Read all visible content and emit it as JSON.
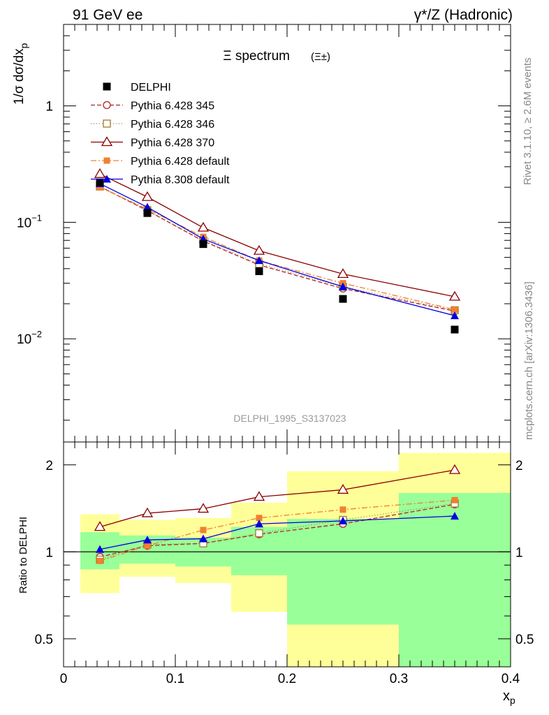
{
  "header": {
    "left": "91 GeV ee",
    "right": "γ*/Z (Hadronic)"
  },
  "side_labels": {
    "rivet": "Rivet 3.1.10, ≥ 2.6M events",
    "mcplots": "mcplots.cern.ch [arXiv:1306.3436]"
  },
  "chart_data": {
    "type": "line",
    "title": "Ξ spectrum",
    "title_suffix": "(Ξ±)",
    "analysis_id": "DELPHI_1995_S3137023",
    "xlabel": "x",
    "xlabel_sub": "p",
    "ylabel": "1/σ dσ/dx",
    "ylabel_sub": "p",
    "ratio_ylabel": "Ratio to DELPHI",
    "x_scale": "linear",
    "xlim": [
      0,
      0.4
    ],
    "x_ticks": [
      "0",
      "0.1",
      "0.2",
      "0.3",
      "0.4"
    ],
    "y_scale": "log",
    "ylim": [
      0.0013,
      5.0
    ],
    "y_ticks": [
      {
        "mantissa": "1",
        "exp": "",
        "value": 1
      },
      {
        "mantissa": "10",
        "exp": "−1",
        "value": 0.1
      },
      {
        "mantissa": "10",
        "exp": "−2",
        "value": 0.01
      }
    ],
    "ratio_scale": "log",
    "ratio_ylim": [
      0.4,
      2.4
    ],
    "ratio_ticks": [
      "0.5",
      "1",
      "2"
    ],
    "ratio_tick_values": [
      0.5,
      1,
      2
    ],
    "legend_position": "top-left",
    "x": [
      0.0325,
      0.075,
      0.125,
      0.175,
      0.25,
      0.35
    ],
    "bin_edges": [
      0.015,
      0.05,
      0.1,
      0.15,
      0.2,
      0.3,
      0.4
    ],
    "data": {
      "name": "DELPHI",
      "color": "#000000",
      "values": [
        0.22,
        0.12,
        0.065,
        0.038,
        0.022,
        0.012
      ]
    },
    "ratio_bands": {
      "inner_color": "#99ff99",
      "outer_color": "#ffff99",
      "inner": [
        [
          0.87,
          1.17
        ],
        [
          0.91,
          1.14
        ],
        [
          0.89,
          1.12
        ],
        [
          0.83,
          1.22
        ],
        [
          0.56,
          1.3
        ],
        [
          0.4,
          1.6
        ]
      ],
      "outer": [
        [
          0.72,
          1.35
        ],
        [
          0.82,
          1.29
        ],
        [
          0.78,
          1.31
        ],
        [
          0.62,
          1.48
        ],
        [
          0.4,
          1.9
        ],
        [
          0.4,
          2.2
        ]
      ]
    },
    "series": [
      {
        "name": "Pythia 6.428 345",
        "color": "#b22222",
        "dash": "6,3",
        "marker": "open-circle",
        "values": [
          0.203,
          0.126,
          0.069,
          0.043,
          0.027,
          0.0173
        ],
        "ratio": [
          0.96,
          1.05,
          1.07,
          1.15,
          1.25,
          1.46
        ]
      },
      {
        "name": "Pythia 6.428 346",
        "color": "#a0792e",
        "dash": "1,3",
        "marker": "open-square",
        "values": [
          0.203,
          0.127,
          0.07,
          0.044,
          0.028,
          0.0176
        ],
        "ratio": [
          0.94,
          1.06,
          1.07,
          1.16,
          1.29,
          1.47
        ]
      },
      {
        "name": "Pythia 6.428 370",
        "color": "#8b0000",
        "dash": "",
        "marker": "open-triangle",
        "values": [
          0.26,
          0.165,
          0.09,
          0.057,
          0.036,
          0.023
        ],
        "ratio": [
          1.22,
          1.36,
          1.41,
          1.55,
          1.64,
          1.92
        ]
      },
      {
        "name": "Pythia 6.428 default",
        "color": "#f08030",
        "dash": "8,3,2,3",
        "marker": "filled-square",
        "values": [
          0.2,
          0.13,
          0.075,
          0.047,
          0.03,
          0.0178
        ],
        "ratio": [
          0.93,
          1.05,
          1.19,
          1.31,
          1.4,
          1.51
        ]
      },
      {
        "name": "Pythia 8.308 default",
        "color": "#0000e0",
        "dash": "",
        "marker": "filled-triangle",
        "values": [
          0.215,
          0.135,
          0.072,
          0.047,
          0.028,
          0.0158
        ],
        "ratio": [
          1.02,
          1.1,
          1.11,
          1.25,
          1.28,
          1.33
        ]
      }
    ]
  }
}
